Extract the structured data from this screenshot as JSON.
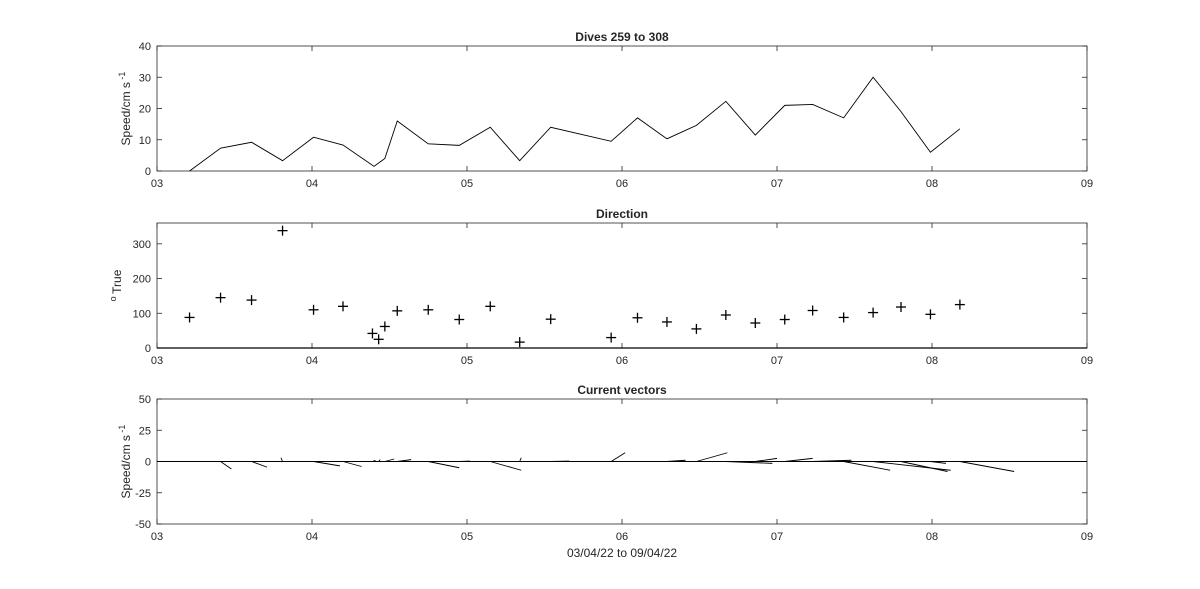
{
  "figure": {
    "xlabel": "03/04/22 to 09/04/22",
    "x_tick_labels": [
      "03",
      "04",
      "05",
      "06",
      "07",
      "08",
      "09"
    ]
  },
  "chart_data": [
    {
      "type": "line",
      "title": "Dives 259 to 308",
      "ylabel": "Speed/cm s",
      "ylabel_superscript": "-1",
      "xlim": [
        3,
        9
      ],
      "ylim": [
        0,
        40
      ],
      "yticks": [
        0,
        10,
        20,
        30,
        40
      ],
      "x": [
        3.21,
        3.41,
        3.61,
        3.81,
        4.01,
        4.2,
        4.4,
        4.47,
        4.55,
        4.75,
        4.95,
        5.15,
        5.34,
        5.54,
        5.93,
        6.1,
        6.29,
        6.48,
        6.67,
        6.86,
        7.05,
        7.23,
        7.43,
        7.62,
        7.8,
        7.99,
        8.18
      ],
      "y": [
        0,
        7.3,
        9.2,
        3.3,
        10.8,
        8.3,
        1.5,
        4,
        16,
        8.7,
        8.2,
        14,
        3.3,
        14,
        9.5,
        17,
        10.3,
        14.6,
        22.3,
        11.5,
        21,
        21.3,
        17,
        30,
        19,
        6,
        13.5
      ]
    },
    {
      "type": "scatter",
      "title": "Direction",
      "ylabel": "True",
      "ylabel_prefix": "o",
      "xlim": [
        3,
        9
      ],
      "ylim": [
        0,
        360
      ],
      "yticks": [
        0,
        100,
        200,
        300
      ],
      "marker": "+",
      "x": [
        3.21,
        3.41,
        3.61,
        3.81,
        4.01,
        4.2,
        4.39,
        4.43,
        4.47,
        4.55,
        4.75,
        4.95,
        5.15,
        5.34,
        5.54,
        5.93,
        6.1,
        6.29,
        6.48,
        6.67,
        6.86,
        7.05,
        7.23,
        7.43,
        7.62,
        7.8,
        7.99,
        8.18
      ],
      "y": [
        88,
        145,
        138,
        338,
        110,
        120,
        42,
        25,
        62,
        107,
        110,
        82,
        120,
        17,
        83,
        30,
        87,
        75,
        55,
        95,
        72,
        82,
        108,
        88,
        102,
        118,
        97,
        125
      ]
    },
    {
      "type": "vector",
      "title": "Current vectors",
      "ylabel": "Speed/cm s",
      "ylabel_superscript": "-1",
      "xlim": [
        3,
        9
      ],
      "ylim": [
        -50,
        50
      ],
      "yticks": [
        -50,
        -25,
        0,
        25,
        50
      ],
      "zero_line": true,
      "note": "each segment starts at (time, 0); components in speed units (east in x-scaled units, north in y)",
      "vectors": [
        {
          "t": 3.41,
          "u": 0.07,
          "v": -6
        },
        {
          "t": 3.61,
          "u": 0.1,
          "v": -4.5
        },
        {
          "t": 3.81,
          "u": -0.01,
          "v": 3
        },
        {
          "t": 4.01,
          "u": 0.17,
          "v": -3.5
        },
        {
          "t": 4.2,
          "u": 0.12,
          "v": -4
        },
        {
          "t": 4.39,
          "u": 0.02,
          "v": 1
        },
        {
          "t": 4.43,
          "u": 0.01,
          "v": 1.5
        },
        {
          "t": 4.47,
          "u": 0.06,
          "v": 2
        },
        {
          "t": 4.55,
          "u": 0.09,
          "v": 1.5
        },
        {
          "t": 4.75,
          "u": 0.2,
          "v": -5
        },
        {
          "t": 4.95,
          "u": 0.07,
          "v": 0.3
        },
        {
          "t": 5.15,
          "u": 0.2,
          "v": -7
        },
        {
          "t": 5.34,
          "u": 0.01,
          "v": 3
        },
        {
          "t": 5.54,
          "u": 0.12,
          "v": 0.3
        },
        {
          "t": 5.93,
          "u": 0.09,
          "v": 7
        },
        {
          "t": 6.29,
          "u": 0.12,
          "v": 1
        },
        {
          "t": 6.48,
          "u": 0.2,
          "v": 7
        },
        {
          "t": 6.67,
          "u": 0.3,
          "v": -1.5
        },
        {
          "t": 6.86,
          "u": 0.14,
          "v": 2.5
        },
        {
          "t": 7.05,
          "u": 0.18,
          "v": 2.5
        },
        {
          "t": 7.23,
          "u": 0.25,
          "v": 1
        },
        {
          "t": 7.43,
          "u": 0.3,
          "v": -7
        },
        {
          "t": 7.62,
          "u": 0.5,
          "v": -7
        },
        {
          "t": 7.8,
          "u": 0.3,
          "v": -8
        },
        {
          "t": 7.99,
          "u": 0.1,
          "v": -1.5
        },
        {
          "t": 8.18,
          "u": 0.35,
          "v": -8
        }
      ]
    }
  ]
}
